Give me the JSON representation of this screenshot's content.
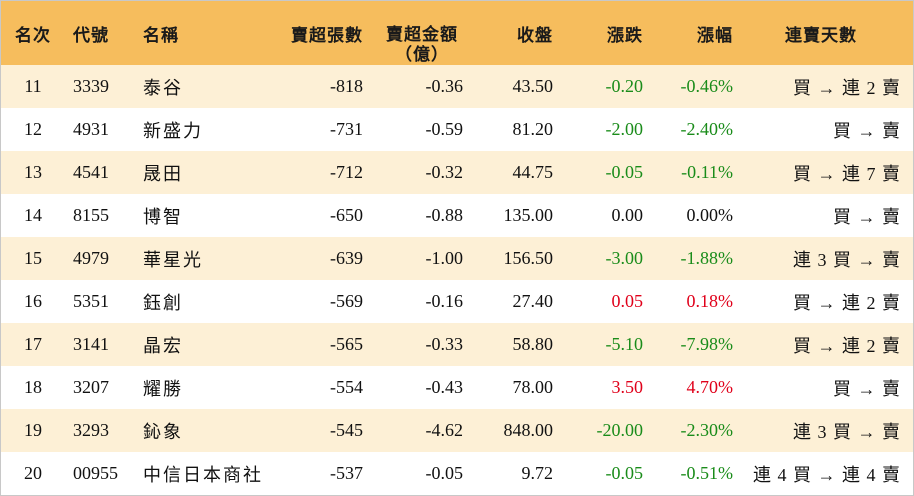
{
  "header": {
    "rank": "名次",
    "code": "代號",
    "name": "名稱",
    "net_sell_shares": "賣超張數",
    "net_sell_amount_line1": "賣超金額",
    "net_sell_amount_line2": "（億）",
    "close": "收盤",
    "change": "漲跌",
    "change_pct": "漲幅",
    "streak": "連賣天數"
  },
  "rows": [
    {
      "rank": "11",
      "code": "3339",
      "name": "泰谷",
      "shares": "-818",
      "amount": "-0.36",
      "close": "43.50",
      "change": "-0.20",
      "pct": "-0.46%",
      "streak": "買 → 連 2 賣",
      "dir": "neg"
    },
    {
      "rank": "12",
      "code": "4931",
      "name": "新盛力",
      "shares": "-731",
      "amount": "-0.59",
      "close": "81.20",
      "change": "-2.00",
      "pct": "-2.40%",
      "streak": "買 → 賣",
      "dir": "neg"
    },
    {
      "rank": "13",
      "code": "4541",
      "name": "晟田",
      "shares": "-712",
      "amount": "-0.32",
      "close": "44.75",
      "change": "-0.05",
      "pct": "-0.11%",
      "streak": "買 → 連 7 賣",
      "dir": "neg"
    },
    {
      "rank": "14",
      "code": "8155",
      "name": "博智",
      "shares": "-650",
      "amount": "-0.88",
      "close": "135.00",
      "change": "0.00",
      "pct": "0.00%",
      "streak": "買 → 賣",
      "dir": "zero"
    },
    {
      "rank": "15",
      "code": "4979",
      "name": "華星光",
      "shares": "-639",
      "amount": "-1.00",
      "close": "156.50",
      "change": "-3.00",
      "pct": "-1.88%",
      "streak": "連 3 買 → 賣",
      "dir": "neg"
    },
    {
      "rank": "16",
      "code": "5351",
      "name": "鈺創",
      "shares": "-569",
      "amount": "-0.16",
      "close": "27.40",
      "change": "0.05",
      "pct": "0.18%",
      "streak": "買 → 連 2 賣",
      "dir": "pos"
    },
    {
      "rank": "17",
      "code": "3141",
      "name": "晶宏",
      "shares": "-565",
      "amount": "-0.33",
      "close": "58.80",
      "change": "-5.10",
      "pct": "-7.98%",
      "streak": "買 → 連 2 賣",
      "dir": "neg"
    },
    {
      "rank": "18",
      "code": "3207",
      "name": "耀勝",
      "shares": "-554",
      "amount": "-0.43",
      "close": "78.00",
      "change": "3.50",
      "pct": "4.70%",
      "streak": "買 → 賣",
      "dir": "pos"
    },
    {
      "rank": "19",
      "code": "3293",
      "name": "鈊象",
      "shares": "-545",
      "amount": "-4.62",
      "close": "848.00",
      "change": "-20.00",
      "pct": "-2.30%",
      "streak": "連 3 買 → 賣",
      "dir": "neg"
    },
    {
      "rank": "20",
      "code": "00955",
      "name": "中信日本商社",
      "shares": "-537",
      "amount": "-0.05",
      "close": "9.72",
      "change": "-0.05",
      "pct": "-0.51%",
      "streak": "連 4 買 → 連 4 賣",
      "dir": "neg"
    }
  ],
  "colors": {
    "header_bg": "#f6bd5d",
    "odd_row_bg": "#fdf0d6",
    "up": "#e0001a",
    "down": "#1a8c1a"
  }
}
